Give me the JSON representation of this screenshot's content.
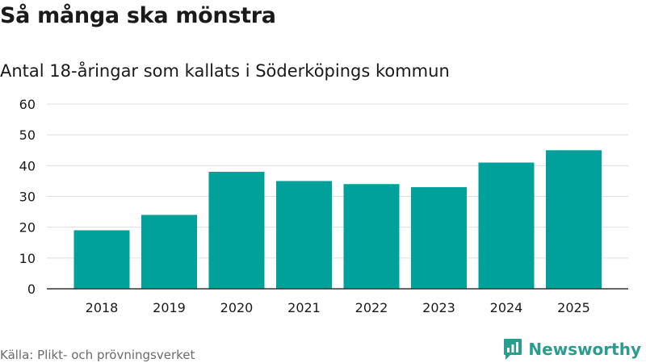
{
  "header": {
    "title": "Så många ska mönstra",
    "subtitle": "Antal 18-åringar som kallats i Söderköpings kommun"
  },
  "footer": {
    "source": "Källa: Plikt- och prövningsverket",
    "brand_name": "Newsworthy"
  },
  "colors": {
    "bar": "#00a19a",
    "grid": "#dddddd",
    "axis": "#333333",
    "text": "#1a1a1a",
    "muted": "#6b6b6b",
    "brand": "#2a9d8f"
  },
  "icons": {
    "brand_logo": "newsworthy-logo-icon"
  },
  "chart_data": {
    "type": "bar",
    "categories": [
      "2018",
      "2019",
      "2020",
      "2021",
      "2022",
      "2023",
      "2024",
      "2025"
    ],
    "values": [
      19,
      24,
      38,
      35,
      34,
      33,
      41,
      45
    ],
    "title": "Så många ska mönstra",
    "subtitle": "Antal 18-åringar som kallats i Söderköpings kommun",
    "ylim": [
      0,
      60
    ],
    "yticks": [
      0,
      10,
      20,
      30,
      40,
      50,
      60
    ],
    "grid": true,
    "legend": "none"
  }
}
